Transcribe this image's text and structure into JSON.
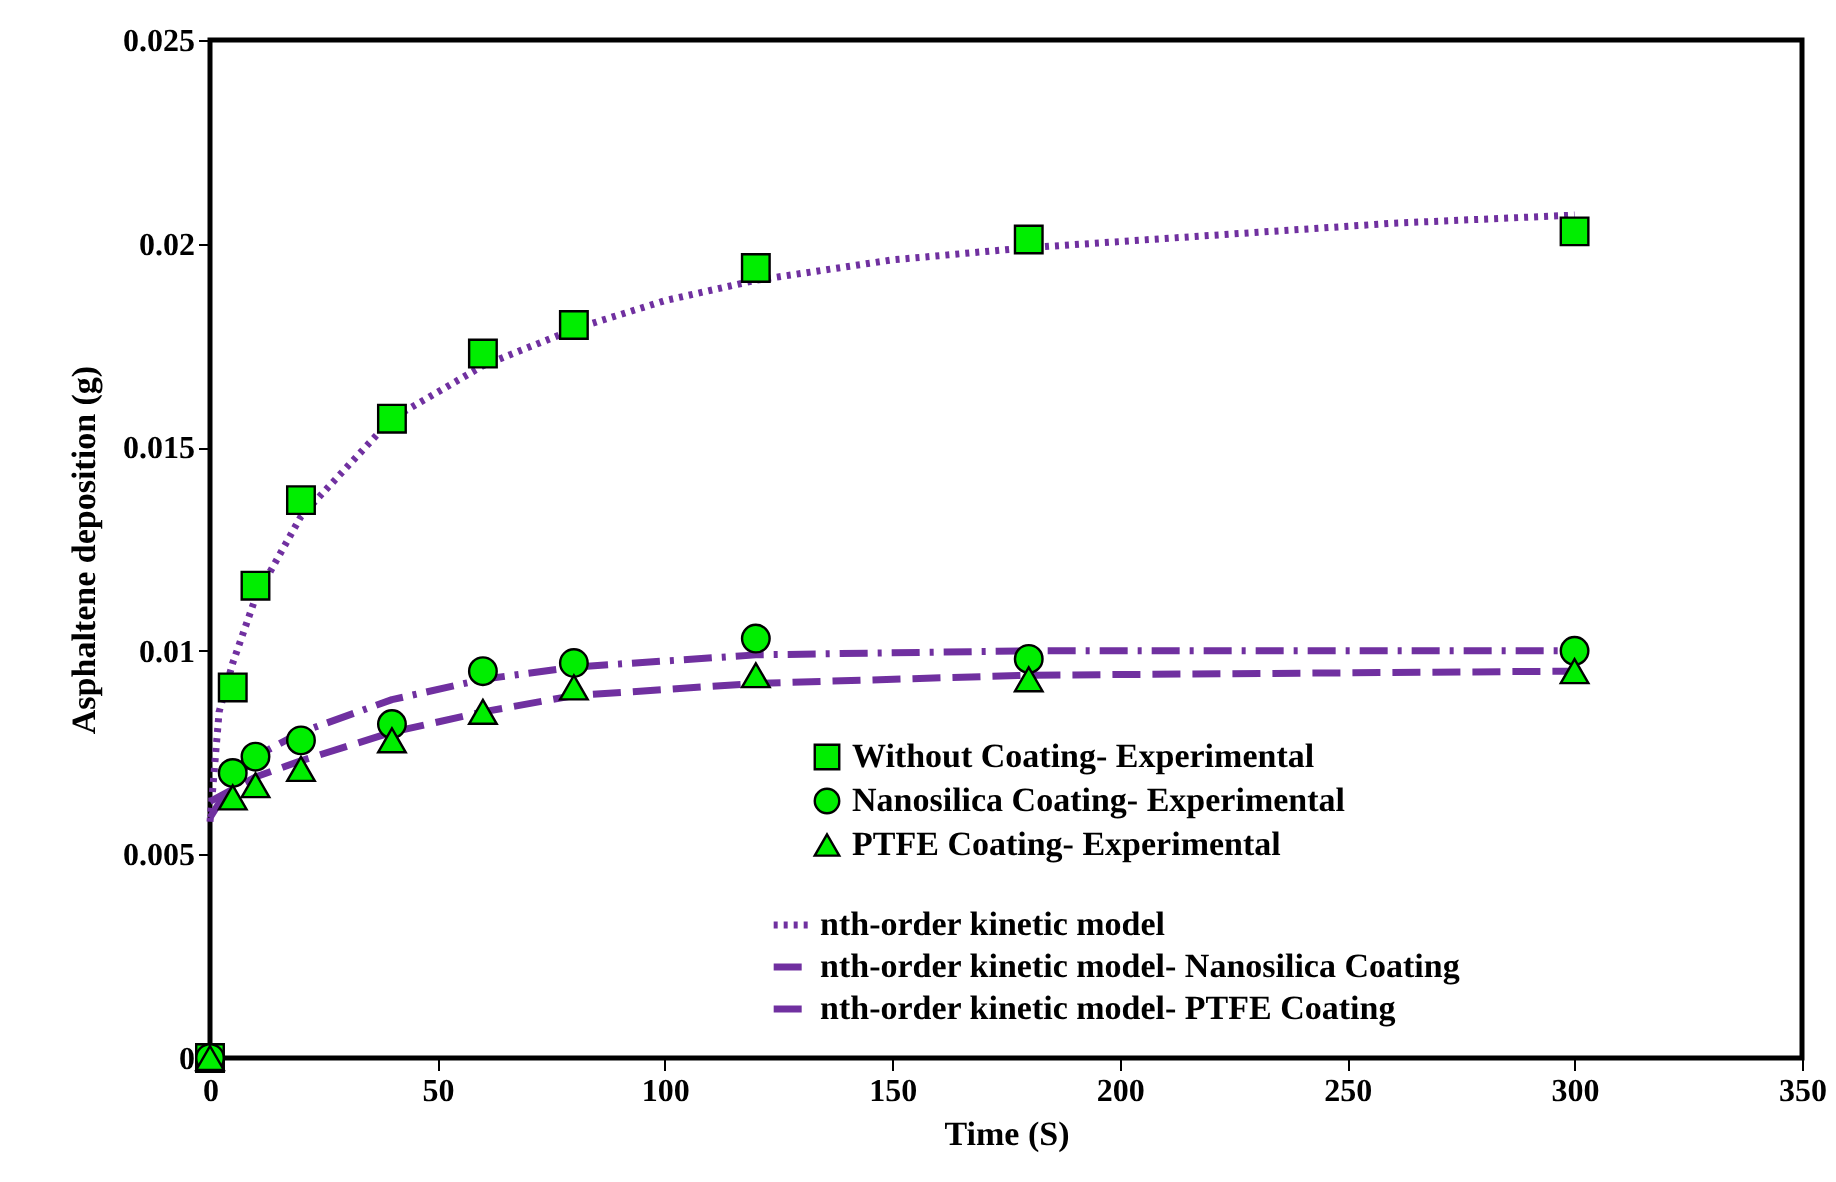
{
  "chart_data": {
    "type": "scatter",
    "xlabel": "Time (S)",
    "ylabel": "Asphaltene deposition (g)",
    "xlim": [
      0,
      350
    ],
    "xticks": [
      0,
      50,
      100,
      150,
      200,
      250,
      300,
      350
    ],
    "ylim": [
      0,
      0.025
    ],
    "yticks": [
      {
        "value": 0,
        "label": "0"
      },
      0.005,
      {
        "value": 0.01,
        "label": "0.01"
      },
      0.015,
      {
        "value": 0.02,
        "label": "0.02"
      },
      0.025
    ],
    "grid": false,
    "legend": "bottom right",
    "series": [
      {
        "name": "Without Coating- Experimental",
        "type": "scatter",
        "marker": "square",
        "color": "#00ee00",
        "x": [
          0,
          5,
          10,
          20,
          40,
          60,
          80,
          120,
          180,
          300
        ],
        "values": [
          0,
          0.0091,
          0.0116,
          0.0137,
          0.0157,
          0.0173,
          0.018,
          0.0194,
          0.0201,
          0.0203
        ]
      },
      {
        "name": "Nanosilica Coating- Experimental",
        "type": "scatter",
        "marker": "circle",
        "color": "#00ee00",
        "x": [
          0,
          5,
          10,
          20,
          40,
          60,
          80,
          120,
          180,
          300
        ],
        "values": [
          0,
          0.007,
          0.0074,
          0.0078,
          0.0082,
          0.0095,
          0.0097,
          0.0103,
          0.0098,
          0.01
        ]
      },
      {
        "name": "PTFE Coating- Experimental",
        "type": "scatter",
        "marker": "triangle",
        "color": "#00ee00",
        "x": [
          0,
          5,
          10,
          20,
          40,
          60,
          80,
          120,
          180,
          300
        ],
        "values": [
          0,
          0.0064,
          0.0067,
          0.0071,
          0.0078,
          0.0085,
          0.0091,
          0.0094,
          0.0093,
          0.0095
        ]
      },
      {
        "name": "nth-order kinetic model",
        "type": "line",
        "line_style": "dotted",
        "color": "#7030a0",
        "x": [
          0,
          2,
          5,
          10,
          20,
          40,
          60,
          80,
          100,
          120,
          150,
          180,
          220,
          260,
          300
        ],
        "values": [
          0.0058,
          0.0085,
          0.0097,
          0.0113,
          0.0133,
          0.0157,
          0.017,
          0.0179,
          0.0186,
          0.0191,
          0.0196,
          0.0199,
          0.0202,
          0.0205,
          0.0207
        ]
      },
      {
        "name": "nth-order kinetic model- Nanosilica Coating",
        "type": "line",
        "line_style": "dashdot",
        "color": "#7030a0",
        "x": [
          0,
          5,
          10,
          20,
          40,
          60,
          80,
          120,
          180,
          300
        ],
        "values": [
          0.0059,
          0.0068,
          0.0074,
          0.008,
          0.0088,
          0.0093,
          0.0096,
          0.0099,
          0.01,
          0.01
        ]
      },
      {
        "name": "nth-order kinetic model- PTFE Coating",
        "type": "line",
        "line_style": "dashed",
        "color": "#7030a0",
        "x": [
          0,
          5,
          10,
          20,
          40,
          60,
          80,
          120,
          180,
          300
        ],
        "values": [
          0.0063,
          0.0066,
          0.0069,
          0.0073,
          0.008,
          0.0085,
          0.0089,
          0.0092,
          0.0094,
          0.0095
        ]
      }
    ]
  }
}
